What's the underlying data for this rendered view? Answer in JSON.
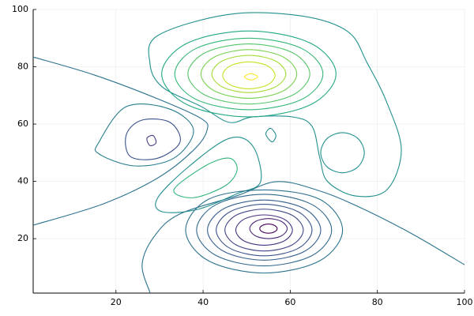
{
  "chart_data": {
    "type": "contour",
    "xlim": [
      1,
      100
    ],
    "ylim": [
      1,
      100
    ],
    "xticks": [
      20,
      40,
      60,
      80,
      100
    ],
    "yticks": [
      20,
      40,
      60,
      80,
      100
    ],
    "grid": true,
    "series": [
      {
        "color": "#2c728e",
        "closed": false,
        "x": [
          1,
          15.1,
          29.6,
          39.6,
          40.9,
          37.8,
          29.6,
          17,
          1
        ],
        "y": [
          83.4,
          77.1,
          68.8,
          61.9,
          57.8,
          50.9,
          41.2,
          32.1,
          24.7
        ]
      },
      {
        "color": "#2c728e",
        "closed": false,
        "x": [
          27.8,
          26,
          28.7,
          34.5,
          47.8,
          56.8,
          65.9,
          75,
          87.7,
          100
        ],
        "y": [
          1.2,
          10.9,
          20.6,
          28.5,
          35,
          39.9,
          37.1,
          31.6,
          21.9,
          10.9
        ]
      },
      {
        "color": "#21908d",
        "closed": true,
        "x": [
          27.8,
          29.6,
          46,
          62.3,
          73.2,
          77.7,
          82.2,
          85.5,
          82.2,
          75,
          68.6,
          66.8,
          65,
          60.5,
          51.4,
          46,
          39.6,
          30.6
        ],
        "y": [
          81.2,
          90.9,
          98.3,
          97.8,
          92.3,
          81.2,
          67.4,
          50.9,
          37.1,
          34.9,
          39.9,
          48.1,
          59.2,
          62.5,
          62.5,
          60.6,
          66.1,
          73
        ]
      },
      {
        "color": "#22a884",
        "closed": true,
        "x": [
          70.5,
          64.7,
          50.5,
          36.3,
          30.5,
          36.3,
          50.5,
          64.7
        ],
        "y": [
          77.5,
          88.2,
          92.5,
          88.2,
          77.5,
          66.8,
          62.5,
          66.8
        ]
      },
      {
        "color": "#35b779",
        "closed": true,
        "x": [
          67.5,
          62.6,
          50.5,
          38.4,
          33.5,
          38.4,
          50.5,
          62.6
        ],
        "y": [
          77.5,
          86.4,
          90,
          86.4,
          77.5,
          68.6,
          65,
          68.6
        ]
      },
      {
        "color": "#54c568",
        "closed": true,
        "x": [
          64.5,
          60.4,
          50.5,
          40.6,
          36.5,
          40.6,
          50.5,
          60.4
        ],
        "y": [
          77.5,
          85,
          88,
          85,
          77.5,
          70,
          67,
          70
        ]
      },
      {
        "color": "#7ad151",
        "closed": true,
        "x": [
          61.5,
          58.3,
          50.5,
          42.7,
          39.5,
          42.7,
          50.5,
          58.3
        ],
        "y": [
          77.5,
          83.5,
          86,
          83.5,
          77.5,
          71.5,
          69,
          71.5
        ]
      },
      {
        "color": "#a5db36",
        "closed": true,
        "x": [
          59,
          56.5,
          50.5,
          44.5,
          42,
          44.5,
          50.5,
          56.5
        ],
        "y": [
          77.5,
          82.1,
          84,
          82.1,
          77.5,
          72.9,
          71,
          72.9
        ]
      },
      {
        "color": "#c8e020",
        "closed": true,
        "x": [
          56.5,
          54.8,
          50.5,
          46.2,
          44.5,
          46.2,
          50.5,
          54.8
        ],
        "y": [
          77,
          80.3,
          81.7,
          80.3,
          77,
          73.7,
          72.3,
          73.7
        ]
      },
      {
        "color": "#fde725",
        "closed": true,
        "x": [
          52.5,
          51,
          49.5,
          51
        ],
        "y": [
          76.5,
          77.6,
          76.5,
          75.4
        ]
      },
      {
        "color": "#21908d",
        "closed": true,
        "x": [
          77,
          75.5,
          72,
          68.5,
          67,
          68.5,
          72,
          75.5
        ],
        "y": [
          50,
          55,
          57,
          55,
          50,
          45,
          43,
          45
        ]
      },
      {
        "color": "#23898e",
        "closed": true,
        "x": [
          56.7,
          55.5,
          54.4,
          55.8
        ],
        "y": [
          56,
          58.5,
          56.5,
          53.8
        ]
      },
      {
        "color": "#21908d",
        "closed": true,
        "x": [
          29.6,
          36.9,
          46,
          51.4,
          53.2,
          47.8,
          38.7,
          30.6
        ],
        "y": [
          34.3,
          45.4,
          55,
          52.3,
          39.9,
          35.7,
          30.2,
          29.4
        ]
      },
      {
        "color": "#2fb47c",
        "closed": true,
        "x": [
          33.3,
          40.5,
          46,
          47.8,
          45.1,
          37.8
        ],
        "y": [
          37.1,
          45.4,
          48.1,
          44,
          38.5,
          34.3
        ]
      },
      {
        "color": "#287d8e",
        "closed": true,
        "x": [
          16.1,
          22.4,
          32.4,
          37.8,
          33.3,
          24.2,
          16.1
        ],
        "y": [
          53.7,
          66.1,
          65.2,
          57.8,
          48.1,
          45.4,
          49.6
        ]
      },
      {
        "color": "#3b528b",
        "closed": true,
        "x": [
          22.4,
          26,
          32.4,
          34.7,
          29.6,
          23.3
        ],
        "y": [
          56.4,
          61.4,
          60.6,
          53.7,
          48.1,
          48.7
        ]
      },
      {
        "color": "#433e85",
        "closed": true,
        "x": [
          27.1,
          28.5,
          29.2,
          27.8
        ],
        "y": [
          55,
          56,
          53.5,
          52.5
        ]
      },
      {
        "color": "#2c728e",
        "closed": true,
        "x": [
          72,
          66.8,
          54,
          41.2,
          36,
          41.2,
          54,
          66.8
        ],
        "y": [
          23,
          33.7,
          37,
          33.7,
          23,
          12.3,
          8,
          12.3
        ]
      },
      {
        "color": "#31688e",
        "closed": true,
        "x": [
          69.5,
          65,
          54,
          43,
          38.5,
          43,
          54,
          65
        ],
        "y": [
          23,
          31.9,
          35.5,
          31.9,
          23,
          14.1,
          10.5,
          14.1
        ]
      },
      {
        "color": "#355f8d",
        "closed": true,
        "x": [
          67,
          63.2,
          54,
          44.8,
          41,
          44.8,
          54,
          63.2
        ],
        "y": [
          23,
          30.5,
          33.5,
          30.5,
          23,
          15.5,
          12.5,
          15.5
        ]
      },
      {
        "color": "#3b528b",
        "closed": true,
        "x": [
          65,
          61.8,
          54,
          46.2,
          43,
          46.2,
          54,
          61.8
        ],
        "y": [
          23,
          29.4,
          32,
          29.4,
          23,
          16.6,
          14,
          16.6
        ]
      },
      {
        "color": "#414487",
        "closed": true,
        "x": [
          63,
          60.4,
          54,
          47.6,
          45,
          47.6,
          54,
          60.4
        ],
        "y": [
          23,
          28.2,
          30.3,
          28.2,
          23,
          17.8,
          15.7,
          17.8
        ]
      },
      {
        "color": "#46327e",
        "closed": true,
        "x": [
          60.5,
          58.6,
          54,
          49.4,
          47.5,
          49.4,
          54,
          58.6
        ],
        "y": [
          23,
          26.8,
          28.3,
          26.8,
          23,
          19.2,
          17.7,
          19.2
        ]
      },
      {
        "color": "#482576",
        "closed": true,
        "x": [
          59.3,
          58,
          55,
          52,
          50.7,
          52,
          55,
          58
        ],
        "y": [
          23.5,
          26,
          27,
          26,
          23.5,
          21,
          20,
          21
        ]
      },
      {
        "color": "#440154",
        "closed": true,
        "x": [
          57,
          56.4,
          55,
          53.6,
          53,
          53.6,
          55,
          56.4
        ],
        "y": [
          23.5,
          24.6,
          25.1,
          24.6,
          23.5,
          22.4,
          21.9,
          22.4
        ]
      }
    ]
  }
}
